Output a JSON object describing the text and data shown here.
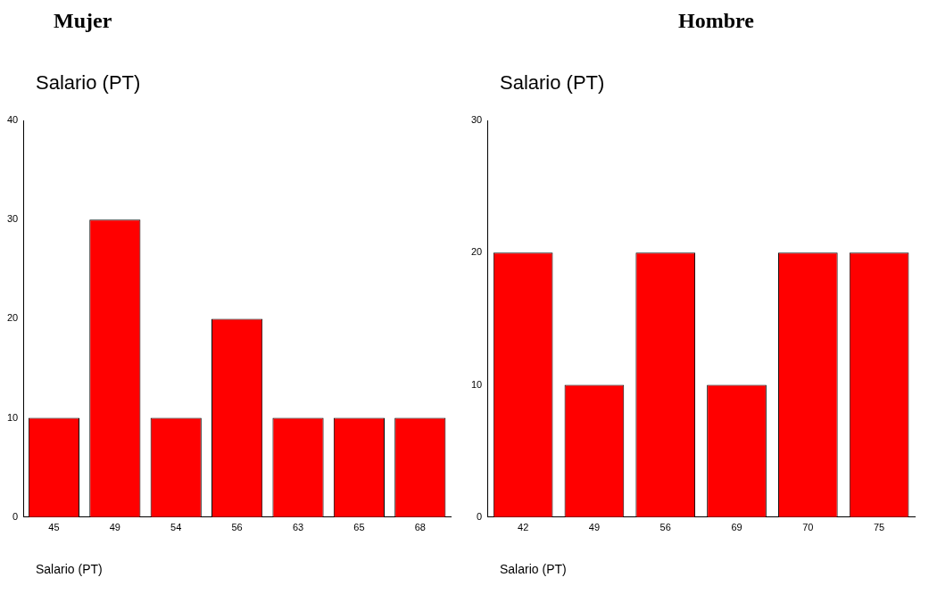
{
  "chart_data": [
    {
      "type": "bar",
      "title": "Mujer",
      "ylabel": "Salario (PT)",
      "xlabel": "Salario (PT)",
      "categories": [
        "45",
        "49",
        "54",
        "56",
        "63",
        "65",
        "68"
      ],
      "values": [
        10,
        30,
        10,
        20,
        10,
        10,
        10
      ],
      "color": "#ff0000",
      "ylim": [
        0,
        40
      ],
      "yticks": [
        0,
        10,
        20,
        30,
        40
      ],
      "grid": false,
      "legend": false
    },
    {
      "type": "bar",
      "title": "Hombre",
      "ylabel": "Salario (PT)",
      "xlabel": "Salario (PT)",
      "categories": [
        "42",
        "49",
        "56",
        "69",
        "70",
        "75"
      ],
      "values": [
        20,
        10,
        20,
        10,
        20,
        20
      ],
      "color": "#ff0000",
      "ylim": [
        0,
        30
      ],
      "yticks": [
        0,
        10,
        20,
        30
      ],
      "grid": false,
      "legend": false
    }
  ]
}
